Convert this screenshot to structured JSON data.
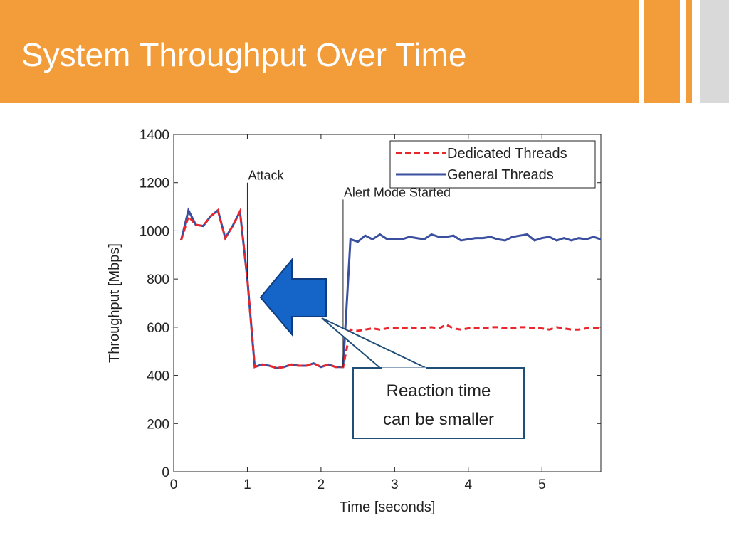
{
  "slide": {
    "title": "System Throughput Over Time"
  },
  "callout": {
    "lines": [
      "Reaction time",
      "can be smaller"
    ]
  },
  "chart_data": {
    "type": "line",
    "x_label": "Time [seconds]",
    "y_label": "Throughput [Mbps]",
    "x": [
      0.1,
      0.2,
      0.3,
      0.4,
      0.5,
      0.6,
      0.7,
      0.8,
      0.9,
      1.0,
      1.1,
      1.2,
      1.3,
      1.4,
      1.5,
      1.6,
      1.7,
      1.8,
      1.9,
      2.0,
      2.1,
      2.2,
      2.3,
      2.4,
      2.5,
      2.6,
      2.7,
      2.8,
      2.9,
      3.0,
      3.1,
      3.2,
      3.3,
      3.4,
      3.5,
      3.6,
      3.7,
      3.8,
      3.9,
      4.0,
      4.1,
      4.2,
      4.3,
      4.4,
      4.5,
      4.6,
      4.7,
      4.8,
      4.9,
      5.0,
      5.1,
      5.2,
      5.3,
      5.4,
      5.5,
      5.6,
      5.7,
      5.8
    ],
    "series": [
      {
        "name": "Dedicated Threads",
        "color": "#e8262b",
        "dashed": true,
        "values": [
          960,
          1060,
          1025,
          1020,
          1060,
          1085,
          970,
          1020,
          1080,
          800,
          435,
          445,
          440,
          430,
          435,
          445,
          440,
          440,
          450,
          435,
          445,
          435,
          435,
          590,
          585,
          590,
          595,
          590,
          595,
          595,
          595,
          600,
          595,
          595,
          600,
          595,
          610,
          595,
          590,
          595,
          595,
          595,
          600,
          600,
          595,
          595,
          600,
          600,
          595,
          595,
          590,
          600,
          595,
          590,
          590,
          595,
          595,
          600
        ]
      },
      {
        "name": "General Threads",
        "color": "#3a4fa0",
        "dashed": false,
        "values": [
          960,
          1085,
          1025,
          1020,
          1060,
          1085,
          970,
          1020,
          1080,
          800,
          435,
          445,
          440,
          430,
          435,
          445,
          440,
          440,
          450,
          435,
          445,
          435,
          435,
          965,
          955,
          980,
          965,
          985,
          965,
          965,
          965,
          975,
          970,
          965,
          985,
          975,
          975,
          980,
          960,
          965,
          970,
          970,
          975,
          965,
          960,
          975,
          980,
          985,
          960,
          970,
          975,
          960,
          970,
          960,
          970,
          965,
          975,
          965
        ]
      }
    ],
    "xlim": [
      0,
      5.8
    ],
    "ylim": [
      0,
      1400
    ],
    "xticks": [
      0,
      1,
      2,
      3,
      4,
      5
    ],
    "yticks": [
      0,
      200,
      400,
      600,
      800,
      1000,
      1200,
      1400
    ],
    "grid": false,
    "legend": "upper right",
    "annotations": [
      {
        "text": "Attack",
        "x": 1,
        "y": 1200
      },
      {
        "text": "Alert Mode Started",
        "x": 2.3,
        "y": 1130
      }
    ]
  }
}
